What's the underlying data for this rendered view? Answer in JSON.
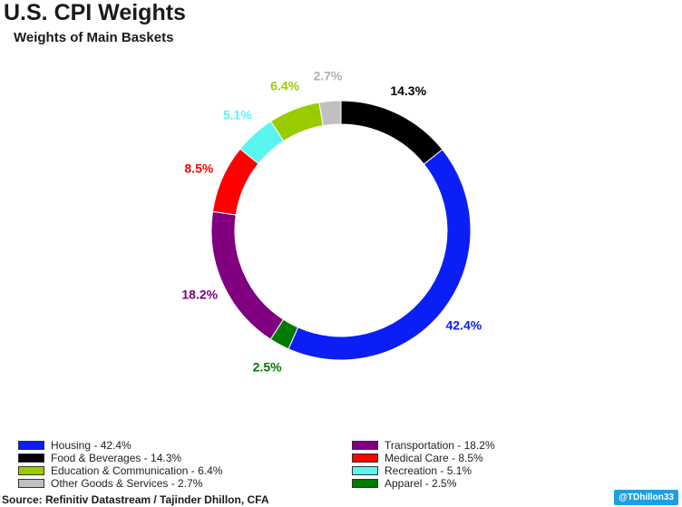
{
  "title": "U.S. CPI Weights",
  "subtitle": "Weights of Main Baskets",
  "source": "Source: Refinitiv Datastream / Tajinder Dhillon, CFA",
  "handle": "@TDhillon33",
  "chart_data": {
    "type": "pie",
    "donut": true,
    "legend_position": "bottom",
    "slices": [
      {
        "label": "Food & Beverages",
        "value": 14.3,
        "value_label": "14.3%",
        "legend": "Food & Beverages - 14.3%",
        "color": "#000000",
        "label_color": "#000000"
      },
      {
        "label": "Housing",
        "value": 42.4,
        "value_label": "42.4%",
        "legend": "Housing - 42.4%",
        "color": "#0a1ef5",
        "label_color": "#0a1ef5"
      },
      {
        "label": "Apparel",
        "value": 2.5,
        "value_label": "2.5%",
        "legend": "Apparel - 2.5%",
        "color": "#007a00",
        "label_color": "#007a00"
      },
      {
        "label": "Transportation",
        "value": 18.2,
        "value_label": "18.2%",
        "legend": "Transportation - 18.2%",
        "color": "#800080",
        "label_color": "#800080"
      },
      {
        "label": "Medical Care",
        "value": 8.5,
        "value_label": "8.5%",
        "legend": "Medical Care - 8.5%",
        "color": "#ff0000",
        "label_color": "#ff0000"
      },
      {
        "label": "Recreation",
        "value": 5.1,
        "value_label": "5.1%",
        "legend": "Recreation - 5.1%",
        "color": "#5af5f0",
        "label_color": "#5af5f0"
      },
      {
        "label": "Education & Communication",
        "value": 6.4,
        "value_label": "6.4%",
        "legend": "Education & Communication - 6.4%",
        "color": "#99cc00",
        "label_color": "#99cc00"
      },
      {
        "label": "Other Goods & Services",
        "value": 2.7,
        "value_label": "2.7%",
        "legend": "Other Goods & Services - 2.7%",
        "color": "#c0c0c0",
        "label_color": "#b0b0b0"
      }
    ],
    "legend_order": [
      [
        "Housing",
        "Food & Beverages",
        "Education & Communication",
        "Other Goods & Services"
      ],
      [
        "Transportation",
        "Medical Care",
        "Recreation",
        "Apparel"
      ]
    ]
  }
}
